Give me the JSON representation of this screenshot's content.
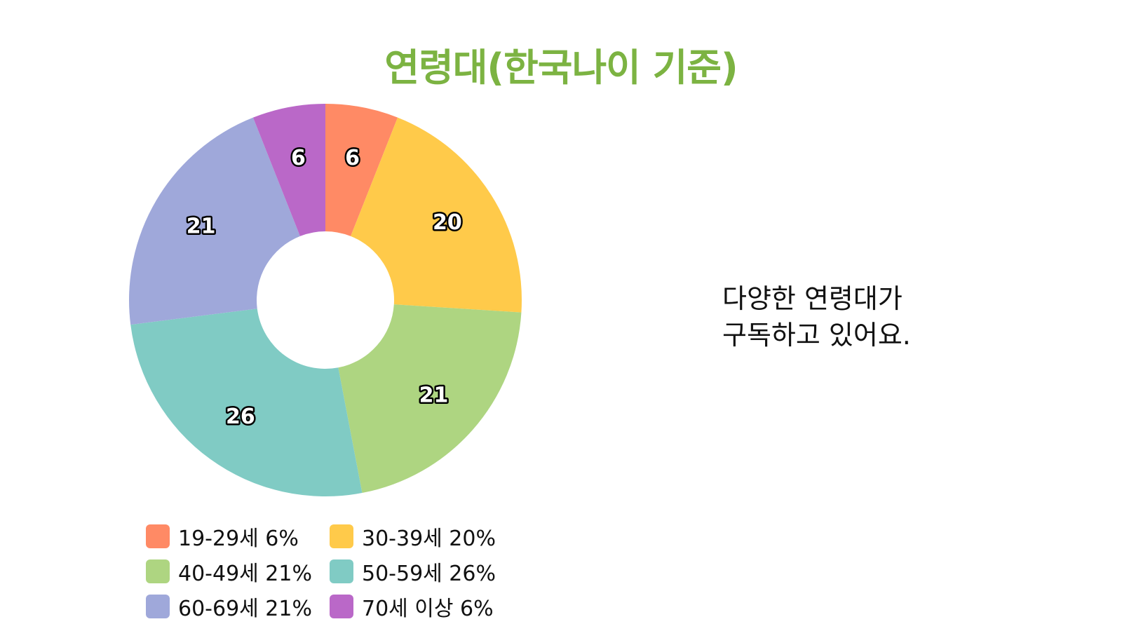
{
  "title": "연령대(한국나이 기준)",
  "side_note": "다양한 연령대가\n구독하고 있어요.",
  "chart_data": {
    "type": "pie",
    "title": "연령대(한국나이 기준)",
    "donut": true,
    "categories": [
      "19-29세",
      "30-39세",
      "40-49세",
      "50-59세",
      "60-69세",
      "70세 이상"
    ],
    "values": [
      6,
      20,
      21,
      26,
      21,
      6
    ],
    "colors": [
      "#ff8a65",
      "#ffca4a",
      "#aed581",
      "#80cbc4",
      "#9fa8da",
      "#ba68c8"
    ],
    "legend": [
      {
        "label": "19-29세 6%",
        "color": "#ff8a65"
      },
      {
        "label": "30-39세 20%",
        "color": "#ffca4a"
      },
      {
        "label": "40-49세 21%",
        "color": "#aed581"
      },
      {
        "label": "50-59세 26%",
        "color": "#80cbc4"
      },
      {
        "label": "60-69세 21%",
        "color": "#9fa8da"
      },
      {
        "label": "70세 이상 6%",
        "color": "#ba68c8"
      }
    ],
    "legend_placement": "bottom"
  }
}
